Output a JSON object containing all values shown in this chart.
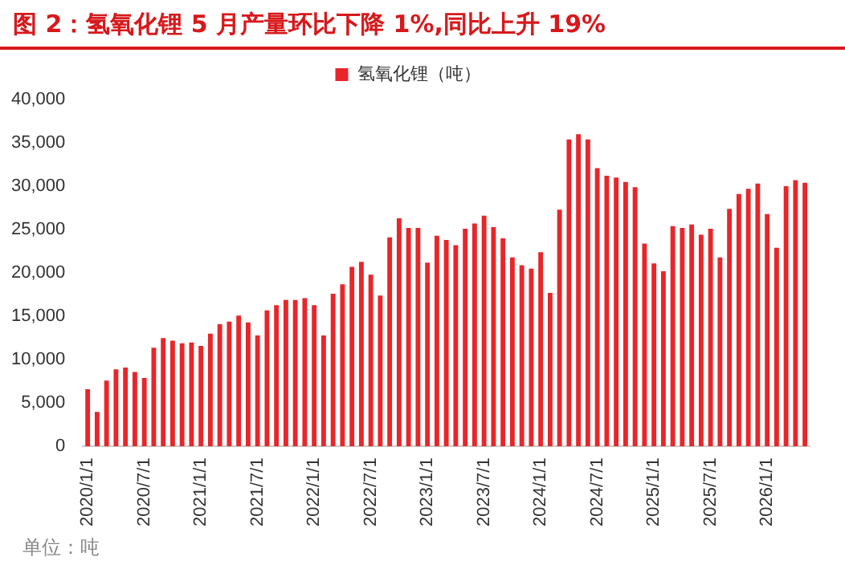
{
  "chart_data": {
    "type": "bar",
    "title": "图 2：氢氧化锂 5 月产量环比下降 1%,同比上升 19%",
    "categories": [
      "2020/1/1",
      null,
      null,
      null,
      null,
      null,
      "2020/7/1",
      null,
      null,
      null,
      null,
      null,
      "2021/1/1",
      null,
      null,
      null,
      null,
      null,
      "2021/7/1",
      null,
      null,
      null,
      null,
      null,
      "2022/1/1",
      null,
      null,
      null,
      null,
      null,
      "2022/7/1",
      null,
      null,
      null,
      null,
      null,
      "2023/1/1",
      null,
      null,
      null,
      null,
      null,
      "2023/7/1",
      null,
      null,
      null,
      null,
      null,
      "2024/1/1",
      null,
      null,
      null,
      null,
      null,
      "2024/7/1",
      null,
      null,
      null,
      null,
      null,
      "2025/1/1",
      null,
      null,
      null,
      null,
      null,
      "2025/7/1",
      null,
      null,
      null,
      null,
      null,
      "2026/1/1",
      null,
      null,
      null,
      null
    ],
    "series": [
      {
        "name": "氢氧化锂（吨）",
        "color": "#e8262a",
        "values": [
          6600,
          4000,
          7600,
          8900,
          9100,
          8600,
          7900,
          11400,
          12500,
          12200,
          11900,
          12000,
          11600,
          13000,
          14100,
          14400,
          15100,
          14300,
          12800,
          15700,
          16300,
          16900,
          16900,
          17100,
          16300,
          12800,
          17600,
          18700,
          20700,
          21300,
          19800,
          17400,
          24100,
          26300,
          25200,
          25200,
          21200,
          24300,
          23800,
          23200,
          25100,
          25700,
          26600,
          25300,
          24000,
          21800,
          20900,
          20500,
          22400,
          17700,
          27300,
          35400,
          36000,
          35400,
          32100,
          31200,
          31000,
          30500,
          29900,
          23400,
          21100,
          20200,
          25400,
          25200,
          25600,
          24400,
          25100,
          21800,
          27400,
          29100,
          29700,
          30300,
          26800,
          22900,
          30000,
          30700,
          30400
        ]
      }
    ],
    "ylim": [
      0,
      40000
    ],
    "yticks": [
      0,
      {
        "value": 5000,
        "label": "5,000"
      },
      {
        "value": 10000,
        "label": "10,000"
      },
      {
        "value": 15000,
        "label": "15,000"
      },
      {
        "value": 20000,
        "label": "20,000"
      },
      {
        "value": 25000,
        "label": "25,000"
      },
      {
        "value": 30000,
        "label": "30,000"
      },
      {
        "value": 35000,
        "label": "35,000"
      },
      {
        "value": 40000,
        "label": "40,000"
      }
    ],
    "grid": false,
    "legend": "top",
    "annotations": [
      "单位：吨"
    ]
  }
}
